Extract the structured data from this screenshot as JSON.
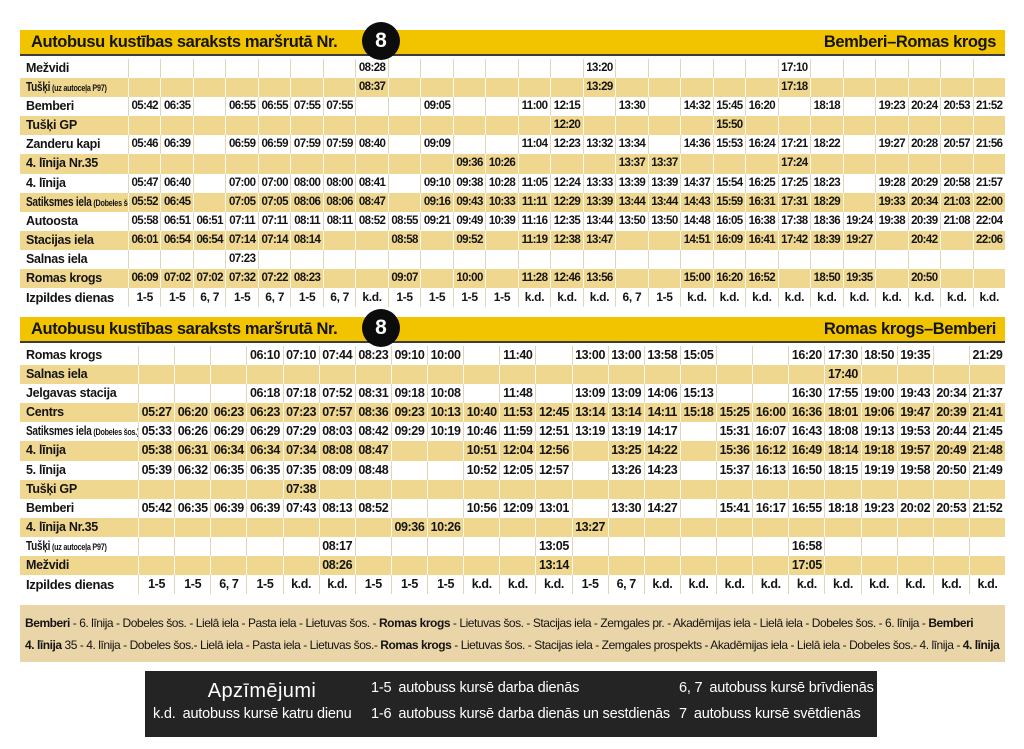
{
  "colors": {
    "header_yellow": "#F2C400",
    "row_shade": "#F0D78F",
    "footer_bg": "#EAD5A8",
    "legend_bg": "#242424",
    "badge_bg": "#0C0C0C",
    "text": "#141414"
  },
  "header1": {
    "title": "Autobusu kustības saraksts maršrutā Nr.",
    "number": "8",
    "route": "Bemberi–Romas krogs"
  },
  "header2": {
    "title": "Autobusu kustības saraksts maršrutā Nr.",
    "number": "8",
    "route": "Romas krogs–Bemberi"
  },
  "table1": {
    "days_label": "Izpildes dienas",
    "days": [
      "1-5",
      "1-5",
      "6, 7",
      "1-5",
      "6, 7",
      "1-5",
      "6, 7",
      "k.d.",
      "1-5",
      "1-5",
      "1-5",
      "1-5",
      "k.d.",
      "k.d.",
      "k.d.",
      "6, 7",
      "1-5",
      "k.d.",
      "k.d.",
      "k.d.",
      "k.d.",
      "k.d.",
      "k.d.",
      "k.d.",
      "k.d.",
      "k.d.",
      "k.d."
    ],
    "rows": [
      {
        "label": "Mežvidi",
        "times": [
          "",
          "",
          "",
          "",
          "",
          "",
          "",
          "08:28",
          "",
          "",
          "",
          "",
          "",
          "",
          "13:20",
          "",
          "",
          "",
          "",
          "",
          "17:10",
          "",
          "",
          "",
          "",
          "",
          ""
        ]
      },
      {
        "label": "Tušķi",
        "sub": "(uz autoceļa P97)",
        "times": [
          "",
          "",
          "",
          "",
          "",
          "",
          "",
          "08:37",
          "",
          "",
          "",
          "",
          "",
          "",
          "13:29",
          "",
          "",
          "",
          "",
          "",
          "17:18",
          "",
          "",
          "",
          "",
          "",
          ""
        ]
      },
      {
        "label": "Bemberi",
        "times": [
          "05:42",
          "06:35",
          "",
          "06:55",
          "06:55",
          "07:55",
          "07:55",
          "",
          "",
          "09:05",
          "",
          "",
          "11:00",
          "12:15",
          "",
          "13:30",
          "",
          "14:32",
          "15:45",
          "16:20",
          "",
          "18:18",
          "",
          "19:23",
          "20:24",
          "20:53",
          "21:52"
        ]
      },
      {
        "label": "Tušķi GP",
        "times": [
          "",
          "",
          "",
          "",
          "",
          "",
          "",
          "",
          "",
          "",
          "",
          "",
          "",
          "12:20",
          "",
          "",
          "",
          "",
          "15:50",
          "",
          "",
          "",
          "",
          "",
          "",
          "",
          ""
        ]
      },
      {
        "label": "Zanderu kapi",
        "times": [
          "05:46",
          "06:39",
          "",
          "06:59",
          "06:59",
          "07:59",
          "07:59",
          "08:40",
          "",
          "09:09",
          "",
          "",
          "11:04",
          "12:23",
          "13:32",
          "13:34",
          "",
          "14:36",
          "15:53",
          "16:24",
          "17:21",
          "18:22",
          "",
          "19:27",
          "20:28",
          "20:57",
          "21:56"
        ]
      },
      {
        "label": "4. līnija Nr.35",
        "times": [
          "",
          "",
          "",
          "",
          "",
          "",
          "",
          "",
          "",
          "",
          "09:36",
          "10:26",
          "",
          "",
          "",
          "13:37",
          "13:37",
          "",
          "",
          "",
          "17:24",
          "",
          "",
          "",
          "",
          "",
          ""
        ]
      },
      {
        "label": "4. līnija",
        "times": [
          "05:47",
          "06:40",
          "",
          "07:00",
          "07:00",
          "08:00",
          "08:00",
          "08:41",
          "",
          "09:10",
          "09:38",
          "10:28",
          "11:05",
          "12:24",
          "13:33",
          "13:39",
          "13:39",
          "14:37",
          "15:54",
          "16:25",
          "17:25",
          "18:23",
          "",
          "19:28",
          "20:29",
          "20:58",
          "21:57"
        ]
      },
      {
        "label": "Satiksmes iela",
        "sub": "(Dobeles šos.)",
        "times": [
          "05:52",
          "06:45",
          "",
          "07:05",
          "07:05",
          "08:06",
          "08:06",
          "08:47",
          "",
          "09:16",
          "09:43",
          "10:33",
          "11:11",
          "12:29",
          "13:39",
          "13:44",
          "13:44",
          "14:43",
          "15:59",
          "16:31",
          "17:31",
          "18:29",
          "",
          "19:33",
          "20:34",
          "21:03",
          "22:00"
        ]
      },
      {
        "label": "Autoosta",
        "times": [
          "05:58",
          "06:51",
          "06:51",
          "07:11",
          "07:11",
          "08:11",
          "08:11",
          "08:52",
          "08:55",
          "09:21",
          "09:49",
          "10:39",
          "11:16",
          "12:35",
          "13:44",
          "13:50",
          "13:50",
          "14:48",
          "16:05",
          "16:38",
          "17:38",
          "18:36",
          "19:24",
          "19:38",
          "20:39",
          "21:08",
          "22:04"
        ]
      },
      {
        "label": "Stacijas iela",
        "times": [
          "06:01",
          "06:54",
          "06:54",
          "07:14",
          "07:14",
          "08:14",
          "",
          "",
          "08:58",
          "",
          "09:52",
          "",
          "11:19",
          "12:38",
          "13:47",
          "",
          "",
          "14:51",
          "16:09",
          "16:41",
          "17:42",
          "18:39",
          "19:27",
          "",
          "20:42",
          "",
          "22:06"
        ]
      },
      {
        "label": "Salnas iela",
        "times": [
          "",
          "",
          "",
          "07:23",
          "",
          "",
          "",
          "",
          "",
          "",
          "",
          "",
          "",
          "",
          "",
          "",
          "",
          "",
          "",
          "",
          "",
          "",
          "",
          "",
          "",
          "",
          ""
        ]
      },
      {
        "label": "Romas krogs",
        "times": [
          "06:09",
          "07:02",
          "07:02",
          "07:32",
          "07:22",
          "08:23",
          "",
          "",
          "09:07",
          "",
          "10:00",
          "",
          "11:28",
          "12:46",
          "13:56",
          "",
          "",
          "15:00",
          "16:20",
          "16:52",
          "",
          "18:50",
          "19:35",
          "",
          "20:50",
          "",
          ""
        ]
      }
    ]
  },
  "table2": {
    "days_label": "Izpildes dienas",
    "days": [
      "1-5",
      "1-5",
      "6, 7",
      "1-5",
      "k.d.",
      "k.d.",
      "1-5",
      "1-5",
      "1-5",
      "k.d.",
      "k.d.",
      "k.d.",
      "1-5",
      "6, 7",
      "k.d.",
      "k.d.",
      "k.d.",
      "k.d.",
      "k.d.",
      "k.d.",
      "k.d.",
      "k.d.",
      "k.d.",
      "k.d."
    ],
    "rows": [
      {
        "label": "Romas krogs",
        "times": [
          "",
          "",
          "",
          "06:10",
          "07:10",
          "07:44",
          "08:23",
          "09:10",
          "10:00",
          "",
          "11:40",
          "",
          "13:00",
          "13:00",
          "13:58",
          "15:05",
          "",
          "",
          "16:20",
          "17:30",
          "18:50",
          "19:35",
          "",
          "21:29"
        ]
      },
      {
        "label": "Salnas iela",
        "times": [
          "",
          "",
          "",
          "",
          "",
          "",
          "",
          "",
          "",
          "",
          "",
          "",
          "",
          "",
          "",
          "",
          "",
          "",
          "",
          "17:40",
          "",
          "",
          "",
          ""
        ]
      },
      {
        "label": "Jelgavas stacija",
        "times": [
          "",
          "",
          "",
          "06:18",
          "07:18",
          "07:52",
          "08:31",
          "09:18",
          "10:08",
          "",
          "11:48",
          "",
          "13:09",
          "13:09",
          "14:06",
          "15:13",
          "",
          "",
          "16:30",
          "17:55",
          "19:00",
          "19:43",
          "20:34",
          "21:37"
        ]
      },
      {
        "label": "Centrs",
        "times": [
          "05:27",
          "06:20",
          "06:23",
          "06:23",
          "07:23",
          "07:57",
          "08:36",
          "09:23",
          "10:13",
          "10:40",
          "11:53",
          "12:45",
          "13:14",
          "13:14",
          "14:11",
          "15:18",
          "15:25",
          "16:00",
          "16:36",
          "18:01",
          "19:06",
          "19:47",
          "20:39",
          "21:41"
        ]
      },
      {
        "label": "Satiksmes iela",
        "sub": "(Dobeles šos.)",
        "times": [
          "05:33",
          "06:26",
          "06:29",
          "06:29",
          "07:29",
          "08:03",
          "08:42",
          "09:29",
          "10:19",
          "10:46",
          "11:59",
          "12:51",
          "13:19",
          "13:19",
          "14:17",
          "",
          "15:31",
          "16:07",
          "16:43",
          "18:08",
          "19:13",
          "19:53",
          "20:44",
          "21:45"
        ]
      },
      {
        "label": "4. līnija",
        "times": [
          "05:38",
          "06:31",
          "06:34",
          "06:34",
          "07:34",
          "08:08",
          "08:47",
          "",
          "",
          "10:51",
          "12:04",
          "12:56",
          "",
          "13:25",
          "14:22",
          "",
          "15:36",
          "16:12",
          "16:49",
          "18:14",
          "19:18",
          "19:57",
          "20:49",
          "21:48"
        ]
      },
      {
        "label": "5. līnija",
        "times": [
          "05:39",
          "06:32",
          "06:35",
          "06:35",
          "07:35",
          "08:09",
          "08:48",
          "",
          "",
          "10:52",
          "12:05",
          "12:57",
          "",
          "13:26",
          "14:23",
          "",
          "15:37",
          "16:13",
          "16:50",
          "18:15",
          "19:19",
          "19:58",
          "20:50",
          "21:49"
        ]
      },
      {
        "label": "Tušķi GP",
        "times": [
          "",
          "",
          "",
          "",
          "07:38",
          "",
          "",
          "",
          "",
          "",
          "",
          "",
          "",
          "",
          "",
          "",
          "",
          "",
          "",
          "",
          "",
          "",
          "",
          ""
        ]
      },
      {
        "label": "Bemberi",
        "times": [
          "05:42",
          "06:35",
          "06:39",
          "06:39",
          "07:43",
          "08:13",
          "08:52",
          "",
          "",
          "10:56",
          "12:09",
          "13:01",
          "",
          "13:30",
          "14:27",
          "",
          "15:41",
          "16:17",
          "16:55",
          "18:18",
          "19:23",
          "20:02",
          "20:53",
          "21:52"
        ]
      },
      {
        "label": "4. līnija Nr.35",
        "times": [
          "",
          "",
          "",
          "",
          "",
          "",
          "",
          "09:36",
          "10:26",
          "",
          "",
          "",
          "13:27",
          "",
          "",
          "",
          "",
          "",
          "",
          "",
          "",
          "",
          "",
          ""
        ]
      },
      {
        "label": "Tušķi",
        "sub": "(uz autoceļa P97)",
        "times": [
          "",
          "",
          "",
          "",
          "",
          "08:17",
          "",
          "",
          "",
          "",
          "",
          "13:05",
          "",
          "",
          "",
          "",
          "",
          "",
          "16:58",
          "",
          "",
          "",
          "",
          ""
        ]
      },
      {
        "label": "Mežvidi",
        "times": [
          "",
          "",
          "",
          "",
          "",
          "08:26",
          "",
          "",
          "",
          "",
          "",
          "13:14",
          "",
          "",
          "",
          "",
          "",
          "",
          "17:05",
          "",
          "",
          "",
          "",
          ""
        ]
      }
    ]
  },
  "footer": {
    "line1": [
      {
        "text": "Bemberi",
        "bold": true
      },
      {
        "text": " - 6. līnija - Dobeles šos. - Lielā iela - Pasta iela - Lietuvas šos. - ",
        "bold": false
      },
      {
        "text": "Romas krogs",
        "bold": true
      },
      {
        "text": " - Lietuvas šos. - Stacijas iela - Zemgales pr. - Akadēmijas iela - Lielā iela - Dobeles šos. - 6. līnija - ",
        "bold": false
      },
      {
        "text": "Bemberi",
        "bold": true
      }
    ],
    "line2": [
      {
        "text": "4. līnija",
        "bold": true
      },
      {
        "text": " 35 - 4. līnija - Dobeles šos.- Lielā iela - Pasta iela - Lietuvas šos.- ",
        "bold": false
      },
      {
        "text": "Romas krogs",
        "bold": true
      },
      {
        "text": " - Lietuvas šos. - Stacijas iela - Zemgales prospekts - Akadēmijas iela - Lielā iela - Dobeles šos.- 4. līnija - ",
        "bold": false
      },
      {
        "text": "4. līnija 35",
        "bold": true
      }
    ]
  },
  "legend": {
    "title": "Apzīmējumi",
    "items": [
      {
        "code": "1-5",
        "text": "autobuss kursē darba dienās"
      },
      {
        "code": "6, 7",
        "text": "autobuss kursē brīvdienās"
      },
      {
        "code": "k.d.",
        "text": "autobuss kursē katru dienu"
      },
      {
        "code": "1-6",
        "text": "autobuss kursē darba dienās un sestdienās"
      },
      {
        "code": "7",
        "text": "autobuss kursē svētdienās"
      }
    ]
  }
}
